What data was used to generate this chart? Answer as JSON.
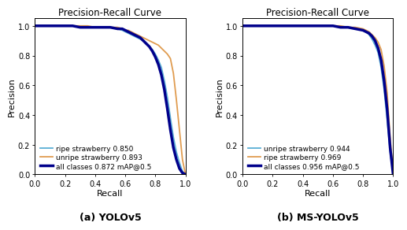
{
  "title": "Precision-Recall Curve",
  "xlabel": "Recall",
  "ylabel": "Precision",
  "xlim": [
    0.0,
    1.0
  ],
  "ylim": [
    0.0,
    1.05
  ],
  "xticks": [
    0.0,
    0.2,
    0.4,
    0.6,
    0.8,
    1.0
  ],
  "yticks": [
    0.0,
    0.2,
    0.4,
    0.6,
    0.8,
    1.0
  ],
  "yolov5": {
    "subtitle": "(a) YOLOv5",
    "legend": [
      {
        "label": "ripe strawberry 0.850",
        "color": "#5bafd6",
        "lw": 1.3
      },
      {
        "label": "unripe strawberry 0.893",
        "color": "#e09c50",
        "lw": 1.3
      },
      {
        "label": "all classes 0.872 mAP@0.5",
        "color": "#00008b",
        "lw": 2.5
      }
    ],
    "ripe": {
      "x": [
        0.0,
        0.02,
        0.05,
        0.1,
        0.15,
        0.2,
        0.25,
        0.3,
        0.35,
        0.4,
        0.45,
        0.5,
        0.55,
        0.58,
        0.6,
        0.62,
        0.64,
        0.66,
        0.68,
        0.7,
        0.72,
        0.74,
        0.76,
        0.78,
        0.8,
        0.82,
        0.84,
        0.86,
        0.88,
        0.9,
        0.92,
        0.94,
        0.96,
        0.98,
        1.0
      ],
      "y": [
        1.0,
        1.0,
        1.0,
        1.0,
        1.0,
        1.0,
        1.0,
        0.99,
        0.99,
        0.99,
        0.99,
        0.99,
        0.98,
        0.97,
        0.96,
        0.95,
        0.94,
        0.93,
        0.92,
        0.91,
        0.9,
        0.88,
        0.86,
        0.84,
        0.81,
        0.77,
        0.72,
        0.63,
        0.52,
        0.38,
        0.25,
        0.15,
        0.08,
        0.02,
        0.0
      ]
    },
    "unripe": {
      "x": [
        0.0,
        0.02,
        0.05,
        0.1,
        0.15,
        0.2,
        0.25,
        0.3,
        0.35,
        0.4,
        0.45,
        0.5,
        0.55,
        0.58,
        0.6,
        0.62,
        0.64,
        0.66,
        0.68,
        0.7,
        0.72,
        0.74,
        0.76,
        0.78,
        0.8,
        0.82,
        0.84,
        0.86,
        0.88,
        0.9,
        0.92,
        0.94,
        0.96,
        0.98,
        1.0
      ],
      "y": [
        1.0,
        1.0,
        1.0,
        1.0,
        1.0,
        1.0,
        1.0,
        1.0,
        1.0,
        0.99,
        0.99,
        0.99,
        0.99,
        0.98,
        0.97,
        0.97,
        0.96,
        0.95,
        0.94,
        0.93,
        0.92,
        0.91,
        0.9,
        0.89,
        0.88,
        0.87,
        0.85,
        0.83,
        0.81,
        0.78,
        0.68,
        0.5,
        0.3,
        0.1,
        0.0
      ]
    },
    "all": {
      "x": [
        0.0,
        0.02,
        0.05,
        0.1,
        0.15,
        0.2,
        0.25,
        0.3,
        0.35,
        0.4,
        0.45,
        0.5,
        0.55,
        0.58,
        0.6,
        0.62,
        0.64,
        0.66,
        0.68,
        0.7,
        0.72,
        0.74,
        0.76,
        0.78,
        0.8,
        0.82,
        0.84,
        0.86,
        0.88,
        0.9,
        0.92,
        0.94,
        0.96,
        0.98,
        1.0
      ],
      "y": [
        1.0,
        1.0,
        1.0,
        1.0,
        1.0,
        1.0,
        1.0,
        0.99,
        0.99,
        0.99,
        0.99,
        0.99,
        0.98,
        0.98,
        0.97,
        0.96,
        0.95,
        0.94,
        0.93,
        0.92,
        0.9,
        0.88,
        0.86,
        0.83,
        0.79,
        0.74,
        0.67,
        0.57,
        0.44,
        0.3,
        0.18,
        0.1,
        0.04,
        0.01,
        0.0
      ]
    }
  },
  "msyolov5": {
    "subtitle": "(b) MS-YOLOv5",
    "legend": [
      {
        "label": "unripe strawberry 0.944",
        "color": "#5bafd6",
        "lw": 1.3
      },
      {
        "label": "ripe strawberry 0.969",
        "color": "#e09c50",
        "lw": 1.3
      },
      {
        "label": "all classes 0.956 mAP@0.5",
        "color": "#00008b",
        "lw": 2.5
      }
    ],
    "unripe": {
      "x": [
        0.0,
        0.02,
        0.05,
        0.1,
        0.15,
        0.2,
        0.25,
        0.3,
        0.35,
        0.4,
        0.45,
        0.5,
        0.55,
        0.6,
        0.65,
        0.7,
        0.75,
        0.8,
        0.82,
        0.84,
        0.86,
        0.88,
        0.9,
        0.92,
        0.94,
        0.96,
        0.98,
        1.0
      ],
      "y": [
        1.0,
        1.0,
        1.0,
        1.0,
        1.0,
        1.0,
        1.0,
        1.0,
        1.0,
        1.0,
        1.0,
        1.0,
        1.0,
        1.0,
        0.99,
        0.99,
        0.98,
        0.97,
        0.96,
        0.94,
        0.91,
        0.87,
        0.82,
        0.72,
        0.57,
        0.37,
        0.15,
        0.0
      ]
    },
    "ripe": {
      "x": [
        0.0,
        0.02,
        0.05,
        0.1,
        0.15,
        0.2,
        0.25,
        0.3,
        0.35,
        0.4,
        0.45,
        0.5,
        0.55,
        0.6,
        0.65,
        0.7,
        0.75,
        0.8,
        0.82,
        0.84,
        0.86,
        0.88,
        0.9,
        0.92,
        0.94,
        0.96,
        0.98,
        1.0
      ],
      "y": [
        1.0,
        1.0,
        1.0,
        1.0,
        1.0,
        1.0,
        1.0,
        1.0,
        1.0,
        1.0,
        1.0,
        1.0,
        1.0,
        1.0,
        1.0,
        0.99,
        0.99,
        0.98,
        0.97,
        0.96,
        0.94,
        0.92,
        0.89,
        0.84,
        0.73,
        0.55,
        0.25,
        0.0
      ]
    },
    "all": {
      "x": [
        0.0,
        0.02,
        0.05,
        0.1,
        0.15,
        0.2,
        0.25,
        0.3,
        0.35,
        0.4,
        0.45,
        0.5,
        0.55,
        0.6,
        0.65,
        0.7,
        0.75,
        0.8,
        0.82,
        0.84,
        0.86,
        0.88,
        0.9,
        0.92,
        0.94,
        0.96,
        0.98,
        1.0
      ],
      "y": [
        1.0,
        1.0,
        1.0,
        1.0,
        1.0,
        1.0,
        1.0,
        1.0,
        1.0,
        1.0,
        1.0,
        1.0,
        1.0,
        1.0,
        0.99,
        0.99,
        0.98,
        0.97,
        0.96,
        0.95,
        0.93,
        0.9,
        0.85,
        0.77,
        0.63,
        0.44,
        0.18,
        0.0
      ]
    }
  },
  "bg_color": "#ffffff",
  "ax_bg_color": "#ffffff",
  "tick_fontsize": 7,
  "label_fontsize": 8,
  "title_fontsize": 8.5,
  "subtitle_fontsize": 9,
  "legend_fontsize": 6.5
}
